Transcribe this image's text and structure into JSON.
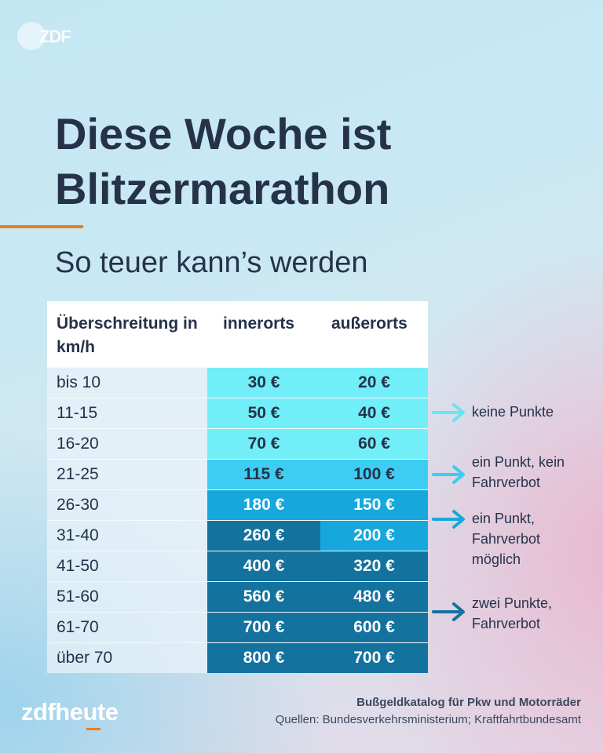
{
  "logo_top": {
    "text": "ZDF"
  },
  "headline": "Diese Woche ist Blitzermarathon",
  "subheadline": "So teuer kann’s werden",
  "table": {
    "headers": [
      "Überschreitung in km/h",
      "innerorts",
      "außerorts"
    ],
    "rows": [
      {
        "range": "bis 10",
        "innerorts": "30 €",
        "ausserorts": "20 €",
        "bg_in": "#72eef8",
        "bg_out": "#72eef8",
        "fg_in": "#25324a",
        "fg_out": "#25324a"
      },
      {
        "range": "11-15",
        "innerorts": "50 €",
        "ausserorts": "40 €",
        "bg_in": "#72eef8",
        "bg_out": "#72eef8",
        "fg_in": "#25324a",
        "fg_out": "#25324a"
      },
      {
        "range": "16-20",
        "innerorts": "70 €",
        "ausserorts": "60 €",
        "bg_in": "#72eef8",
        "bg_out": "#72eef8",
        "fg_in": "#25324a",
        "fg_out": "#25324a"
      },
      {
        "range": "21-25",
        "innerorts": "115 €",
        "ausserorts": "100 €",
        "bg_in": "#3dcdf2",
        "bg_out": "#3dcdf2",
        "fg_in": "#25324a",
        "fg_out": "#25324a"
      },
      {
        "range": "26-30",
        "innerorts": "180 €",
        "ausserorts": "150 €",
        "bg_in": "#16a8dc",
        "bg_out": "#16a8dc",
        "fg_in": "#ffffff",
        "fg_out": "#ffffff"
      },
      {
        "range": "31-40",
        "innerorts": "260 €",
        "ausserorts": "200 €",
        "bg_in": "#14729f",
        "bg_out": "#16a8dc",
        "fg_in": "#ffffff",
        "fg_out": "#ffffff"
      },
      {
        "range": "41-50",
        "innerorts": "400 €",
        "ausserorts": "320 €",
        "bg_in": "#14729f",
        "bg_out": "#14729f",
        "fg_in": "#ffffff",
        "fg_out": "#ffffff"
      },
      {
        "range": "51-60",
        "innerorts": "560 €",
        "ausserorts": "480 €",
        "bg_in": "#14729f",
        "bg_out": "#14729f",
        "fg_in": "#ffffff",
        "fg_out": "#ffffff"
      },
      {
        "range": "61-70",
        "innerorts": "700 €",
        "ausserorts": "600 €",
        "bg_in": "#14729f",
        "bg_out": "#14729f",
        "fg_in": "#ffffff",
        "fg_out": "#ffffff"
      },
      {
        "range": "über 70",
        "innerorts": "800 €",
        "ausserorts": "700 €",
        "bg_in": "#14729f",
        "bg_out": "#14729f",
        "fg_in": "#ffffff",
        "fg_out": "#ffffff"
      }
    ]
  },
  "annotations": [
    {
      "line1": "keine Punkte",
      "line2": "",
      "line3": "",
      "arrow_color": "#64e6f5"
    },
    {
      "line1": "ein Punkt, kein",
      "line2": "Fahrverbot",
      "line3": "",
      "arrow_color": "#3dcdf2"
    },
    {
      "line1": "ein Punkt,",
      "line2": "Fahrverbot",
      "line3": "möglich",
      "arrow_color": "#16a8dc"
    },
    {
      "line1": "zwei Punkte,",
      "line2": "Fahrverbot",
      "line3": "",
      "arrow_color": "#14729f"
    }
  ],
  "brand": {
    "part1": "zdf",
    "part2": "heute"
  },
  "sources": {
    "line1": "Bußgeldkatalog für Pkw und Motorräder",
    "line2": "Quellen: Bundesverkehrsministerium; Kraftfahrtbundesamt"
  }
}
